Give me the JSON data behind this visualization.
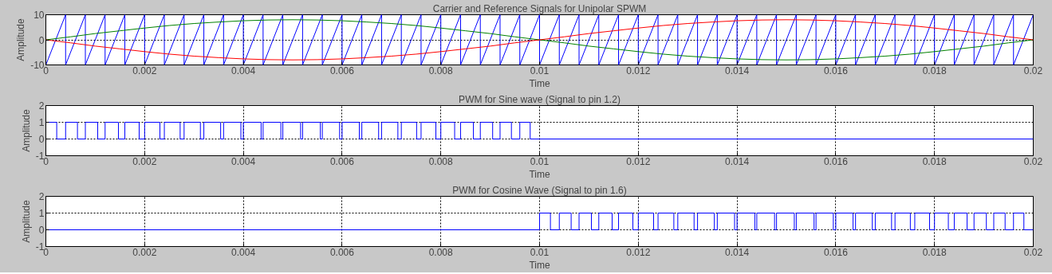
{
  "chart_data": [
    {
      "type": "line",
      "title": "Carrier and Reference Signals for Unipolar SPWM",
      "xlabel": "Time",
      "ylabel": "Amplitude",
      "xlim": [
        0,
        0.02
      ],
      "ylim": [
        -10,
        10
      ],
      "xticks": [
        0,
        0.002,
        0.004,
        0.006,
        0.008,
        0.01,
        0.012,
        0.014,
        0.016,
        0.018,
        0.02
      ],
      "yticks": [
        -10,
        0,
        10
      ],
      "grid": true,
      "series": [
        {
          "color": "#0000ff",
          "x": [
            0,
            0.0004,
            0.0004,
            0.0008,
            0.0008,
            0.0012,
            0.0012,
            0.0016,
            0.0016,
            0.002,
            0.002,
            0.0024,
            0.0024,
            0.0028,
            0.0028,
            0.0032,
            0.0032,
            0.0036,
            0.0036,
            0.004,
            0.004,
            0.0044,
            0.0044,
            0.0048,
            0.0048,
            0.0052,
            0.0052,
            0.0056,
            0.0056,
            0.006,
            0.006,
            0.0064,
            0.0064,
            0.0068,
            0.0068,
            0.0072,
            0.0072,
            0.0076,
            0.0076,
            0.008,
            0.008,
            0.0084,
            0.0084,
            0.0088,
            0.0088,
            0.0092,
            0.0092,
            0.0096,
            0.0096,
            0.01,
            0.01,
            0.0104,
            0.0104,
            0.0108,
            0.0108,
            0.0112,
            0.0112,
            0.0116,
            0.0116,
            0.012,
            0.012,
            0.0124,
            0.0124,
            0.0128,
            0.0128,
            0.0132,
            0.0132,
            0.0136,
            0.0136,
            0.014,
            0.014,
            0.0144,
            0.0144,
            0.0148,
            0.0148,
            0.0152,
            0.0152,
            0.0156,
            0.0156,
            0.016,
            0.016,
            0.0164,
            0.0164,
            0.0168,
            0.0168,
            0.0172,
            0.0172,
            0.0176,
            0.0176,
            0.018,
            0.018,
            0.0184,
            0.0184,
            0.0188,
            0.0188,
            0.0192,
            0.0192,
            0.0196,
            0.0196,
            0.02
          ],
          "values": [
            -10,
            10,
            -10,
            10,
            -10,
            10,
            -10,
            10,
            -10,
            10,
            -10,
            10,
            -10,
            10,
            -10,
            10,
            -10,
            10,
            -10,
            10,
            -10,
            10,
            -10,
            10,
            -10,
            10,
            -10,
            10,
            -10,
            10,
            -10,
            10,
            -10,
            10,
            -10,
            10,
            -10,
            10,
            -10,
            10,
            -10,
            10,
            -10,
            10,
            -10,
            10,
            -10,
            10,
            -10,
            10,
            -10,
            10,
            -10,
            10,
            -10,
            10,
            -10,
            10,
            -10,
            10,
            -10,
            10,
            -10,
            10,
            -10,
            10,
            -10,
            10,
            -10,
            10,
            -10,
            10,
            -10,
            10,
            -10,
            10,
            -10,
            10,
            -10,
            10,
            -10,
            10,
            -10,
            10,
            -10,
            10,
            -10,
            10,
            -10,
            10,
            -10,
            10,
            -10,
            10,
            -10,
            10,
            -10,
            10,
            -10,
            10
          ]
        },
        {
          "color": "#008000",
          "x": [
            0,
            0.0005,
            0.001,
            0.0015,
            0.002,
            0.0025,
            0.003,
            0.0035,
            0.004,
            0.0045,
            0.005,
            0.0055,
            0.006,
            0.0065,
            0.007,
            0.0075,
            0.008,
            0.0085,
            0.009,
            0.0095,
            0.01,
            0.0105,
            0.011,
            0.0115,
            0.012,
            0.0125,
            0.013,
            0.0135,
            0.014,
            0.0145,
            0.015,
            0.0155,
            0.016,
            0.0165,
            0.017,
            0.0175,
            0.018,
            0.0185,
            0.019,
            0.0195,
            0.02
          ],
          "values": [
            0,
            1.2,
            2.5,
            3.6,
            4.7,
            5.7,
            6.5,
            7.1,
            7.6,
            7.9,
            8,
            7.9,
            7.6,
            7.1,
            6.5,
            5.7,
            4.7,
            3.6,
            2.5,
            1.2,
            0,
            -1.2,
            -2.5,
            -3.6,
            -4.7,
            -5.7,
            -6.5,
            -7.1,
            -7.6,
            -7.9,
            -8,
            -7.9,
            -7.6,
            -7.1,
            -6.5,
            -5.7,
            -4.7,
            -3.6,
            -2.5,
            -1.2,
            0
          ]
        },
        {
          "color": "#ff0000",
          "x": [
            0,
            0.0005,
            0.001,
            0.0015,
            0.002,
            0.0025,
            0.003,
            0.0035,
            0.004,
            0.0045,
            0.005,
            0.0055,
            0.006,
            0.0065,
            0.007,
            0.0075,
            0.008,
            0.0085,
            0.009,
            0.0095,
            0.01,
            0.0105,
            0.011,
            0.0115,
            0.012,
            0.0125,
            0.013,
            0.0135,
            0.014,
            0.0145,
            0.015,
            0.0155,
            0.016,
            0.0165,
            0.017,
            0.0175,
            0.018,
            0.0185,
            0.019,
            0.0195,
            0.02
          ],
          "values": [
            0,
            -1.2,
            -2.5,
            -3.6,
            -4.7,
            -5.7,
            -6.5,
            -7.1,
            -7.6,
            -7.9,
            -8,
            -7.9,
            -7.6,
            -7.1,
            -6.5,
            -5.7,
            -4.7,
            -3.6,
            -2.5,
            -1.2,
            0,
            1.2,
            2.5,
            3.6,
            4.7,
            5.7,
            6.5,
            7.1,
            7.6,
            7.9,
            8,
            7.9,
            7.6,
            7.1,
            6.5,
            5.7,
            4.7,
            3.6,
            2.5,
            1.2,
            0
          ]
        }
      ]
    },
    {
      "type": "step",
      "title": "PWM for Sine wave (Signal to pin 1.2)",
      "xlabel": "Time",
      "ylabel": "Amplitude",
      "xlim": [
        0,
        0.02
      ],
      "ylim": [
        -1,
        2
      ],
      "xticks": [
        0,
        0.002,
        0.004,
        0.006,
        0.008,
        0.01,
        0.012,
        0.014,
        0.016,
        0.018,
        0.02
      ],
      "yticks": [
        -1,
        0,
        1,
        2
      ],
      "grid": true,
      "series": [
        {
          "color": "#0000ff",
          "x": [
            0,
            0.00022,
            0.0004,
            0.00064,
            0.0008,
            0.00105,
            0.0012,
            0.00147,
            0.0016,
            0.00189,
            0.002,
            0.00231,
            0.0024,
            0.00272,
            0.0028,
            0.00313,
            0.0032,
            0.00354,
            0.0036,
            0.00395,
            0.004,
            0.00436,
            0.0044,
            0.00476,
            0.0048,
            0.00516,
            0.0052,
            0.00556,
            0.0056,
            0.00595,
            0.006,
            0.00635,
            0.0064,
            0.00674,
            0.0068,
            0.00713,
            0.0072,
            0.00751,
            0.0076,
            0.0079,
            0.008,
            0.00828,
            0.0084,
            0.00866,
            0.0088,
            0.00905,
            0.0092,
            0.00943,
            0.0096,
            0.00981,
            0.02
          ],
          "values": [
            1,
            0,
            1,
            0,
            1,
            0,
            1,
            0,
            1,
            0,
            1,
            0,
            1,
            0,
            1,
            0,
            1,
            0,
            1,
            0,
            1,
            0,
            1,
            0,
            1,
            0,
            1,
            0,
            1,
            0,
            1,
            0,
            1,
            0,
            1,
            0,
            1,
            0,
            1,
            0,
            1,
            0,
            1,
            0,
            1,
            0,
            1,
            0,
            1,
            0,
            0
          ]
        }
      ]
    },
    {
      "type": "step",
      "title": "PWM for Cosine Wave (Signal to pin 1.6)",
      "xlabel": "Time",
      "ylabel": "Amplitude",
      "xlim": [
        0,
        0.02
      ],
      "ylim": [
        -1,
        2
      ],
      "xticks": [
        0,
        0.002,
        0.004,
        0.006,
        0.008,
        0.01,
        0.012,
        0.014,
        0.016,
        0.018,
        0.02
      ],
      "yticks": [
        -1,
        0,
        1,
        2
      ],
      "grid": true,
      "series": [
        {
          "color": "#0000ff",
          "x": [
            0,
            0.01,
            0.01022,
            0.0104,
            0.01064,
            0.0108,
            0.01105,
            0.0112,
            0.01147,
            0.0116,
            0.01189,
            0.012,
            0.01231,
            0.0124,
            0.01272,
            0.0128,
            0.01313,
            0.0132,
            0.01354,
            0.0136,
            0.01395,
            0.014,
            0.01436,
            0.0144,
            0.01476,
            0.0148,
            0.01516,
            0.0152,
            0.01556,
            0.0156,
            0.01595,
            0.016,
            0.01635,
            0.0164,
            0.01674,
            0.0168,
            0.01713,
            0.0172,
            0.01751,
            0.0176,
            0.0179,
            0.018,
            0.01828,
            0.0184,
            0.01866,
            0.0188,
            0.01905,
            0.0192,
            0.01943,
            0.0196,
            0.01981,
            0.02
          ],
          "values": [
            0,
            1,
            0,
            1,
            0,
            1,
            0,
            1,
            0,
            1,
            0,
            1,
            0,
            1,
            0,
            1,
            0,
            1,
            0,
            1,
            0,
            1,
            0,
            1,
            0,
            1,
            0,
            1,
            0,
            1,
            0,
            1,
            0,
            1,
            0,
            1,
            0,
            1,
            0,
            1,
            0,
            1,
            0,
            1,
            0,
            1,
            0,
            1,
            0,
            1,
            0,
            0
          ]
        }
      ]
    }
  ]
}
